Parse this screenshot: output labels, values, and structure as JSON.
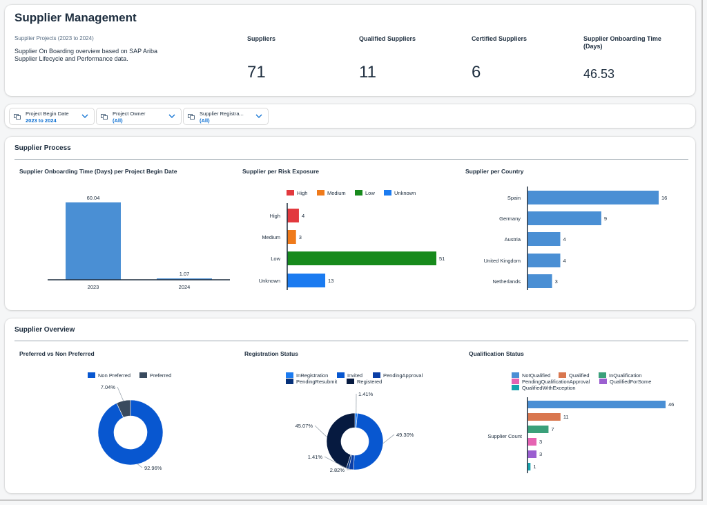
{
  "header": {
    "title": "Supplier Management",
    "subtitle": "Supplier Projects (2023 to 2024)",
    "description": "Supplier On Boarding overview based on SAP Ariba Supplier Lifecycle and Performance data.",
    "kpis": [
      {
        "label": "Suppliers",
        "value": "71"
      },
      {
        "label": "Qualified Suppliers",
        "value": "11"
      },
      {
        "label": "Certified Suppliers",
        "value": "6"
      },
      {
        "label": "Supplier Onboarding Time (Days)",
        "value": "46.53"
      }
    ]
  },
  "filters": [
    {
      "label": "Project Begin Date",
      "value": "2023 to 2024",
      "icon": "filter-icon"
    },
    {
      "label": "Project Owner",
      "value": "(All)",
      "icon": "filter-icon"
    },
    {
      "label": "Supplier Registra...",
      "value": "(All)",
      "icon": "filter-icon"
    }
  ],
  "sections": {
    "process_title": "Supplier Process",
    "overview_title": "Supplier Overview"
  },
  "chart_titles": {
    "onboarding": "Supplier Onboarding Time (Days) per Project Begin Date",
    "risk": "Supplier per Risk Exposure",
    "country": "Supplier per Country",
    "preferred": "Preferred vs Non Preferred",
    "registration": "Registration Status",
    "qualification": "Qualification Status"
  },
  "chart_data": [
    {
      "id": "onboarding",
      "type": "bar",
      "title": "Supplier Onboarding Time (Days) per Project Begin Date",
      "categories": [
        "2023",
        "2024"
      ],
      "values": [
        60.04,
        1.07
      ],
      "data_labels": [
        "60.04",
        "1.07"
      ],
      "color": "#4a8fd4"
    },
    {
      "id": "risk",
      "type": "bar",
      "orientation": "horizontal",
      "title": "Supplier per Risk Exposure",
      "categories": [
        "High",
        "Medium",
        "Low",
        "Unknown"
      ],
      "values": [
        4,
        3,
        51,
        13
      ],
      "colors": [
        "#e2393e",
        "#ef7a1a",
        "#178a1c",
        "#1b7bf0"
      ],
      "legend": [
        "High",
        "Medium",
        "Low",
        "Unknown"
      ],
      "legend_position": "top"
    },
    {
      "id": "country",
      "type": "bar",
      "orientation": "horizontal",
      "title": "Supplier per Country",
      "categories": [
        "Spain",
        "Germany",
        "Austria",
        "United Kingdom",
        "Netherlands"
      ],
      "values": [
        16,
        9,
        4,
        4,
        3
      ],
      "color": "#4a8fd4"
    },
    {
      "id": "preferred",
      "type": "pie",
      "title": "Preferred vs Non Preferred",
      "labels": [
        "Non Preferred",
        "Preferred"
      ],
      "values": [
        92.96,
        7.04
      ],
      "value_labels": [
        "92.96%",
        "7.04%"
      ],
      "colors": [
        "#0857d0",
        "#394a5e"
      ],
      "legend_position": "top"
    },
    {
      "id": "registration",
      "type": "pie",
      "title": "Registration Status",
      "labels": [
        "InRegistration",
        "Invited",
        "PendingApproval",
        "PendingResubmit",
        "Registered"
      ],
      "values": [
        1.41,
        49.3,
        2.82,
        1.41,
        45.07
      ],
      "value_labels": [
        "1.41%",
        "49.30%",
        "2.82%",
        "1.41%",
        "45.07%"
      ],
      "colors": [
        "#1b7bf0",
        "#0857d0",
        "#0a3ea6",
        "#06317a",
        "#061a40"
      ],
      "legend_position": "top"
    },
    {
      "id": "qualification",
      "type": "bar",
      "orientation": "horizontal",
      "title": "Qualification Status",
      "ylabel": "Supplier Count",
      "categories": [
        "NotQualified",
        "Qualified",
        "InQualification",
        "PendingQualificationApproval",
        "QualifiedForSome",
        "QualifiedWithException"
      ],
      "values": [
        46,
        11,
        7,
        3,
        3,
        1
      ],
      "colors": [
        "#4a8fd4",
        "#d9774f",
        "#3aa07a",
        "#e563b2",
        "#9b5fd0",
        "#18a3ad"
      ],
      "legend_position": "top"
    }
  ]
}
